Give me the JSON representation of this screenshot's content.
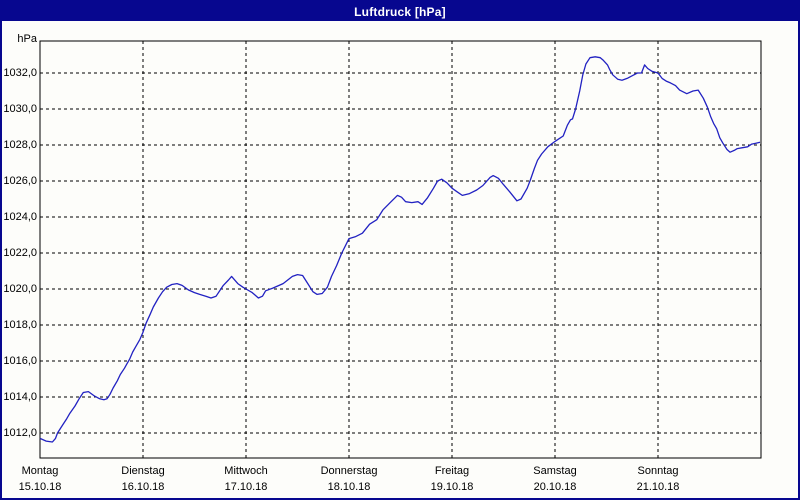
{
  "window": {
    "title": "Luftdruck [hPa]"
  },
  "colors": {
    "frame": "#07078f",
    "title_text": "#ffffff",
    "background": "#fdfdfa",
    "grid": "#000000",
    "line": "#2222c2",
    "text": "#000000"
  },
  "chart_data": {
    "type": "line",
    "title": "Luftdruck [hPa]",
    "ylabel_unit": "hPa",
    "decimal_separator": ",",
    "grid": "dashed horizontal lines every 2 hPa and dashed vertical lines at each day start",
    "legend": "none",
    "ylim_displayed": [
      1012,
      1032
    ],
    "y_ticks": [
      "1032,0",
      "1030,0",
      "1028,0",
      "1026,0",
      "1024,0",
      "1022,0",
      "1020,0",
      "1018,0",
      "1016,0",
      "1014,0",
      "1012,0"
    ],
    "x_axis": {
      "labels": [
        {
          "weekday": "Montag",
          "date": "15.10.18"
        },
        {
          "weekday": "Dienstag",
          "date": "16.10.18"
        },
        {
          "weekday": "Mittwoch",
          "date": "17.10.18"
        },
        {
          "weekday": "Donnerstag",
          "date": "18.10.18"
        },
        {
          "weekday": "Freitag",
          "date": "19.10.18"
        },
        {
          "weekday": "Samstag",
          "date": "20.10.18"
        },
        {
          "weekday": "Sonntag",
          "date": "21.10.18"
        }
      ],
      "x_unit": "days since Montag 15.10.18 00:00"
    },
    "series": [
      {
        "name": "Luftdruck",
        "unit": "hPa",
        "color": "#2222c2",
        "points": [
          [
            0.0,
            1011.7
          ],
          [
            0.06,
            1011.55
          ],
          [
            0.12,
            1011.5
          ],
          [
            0.15,
            1011.7
          ],
          [
            0.17,
            1012.0
          ],
          [
            0.22,
            1012.45
          ],
          [
            0.26,
            1012.8
          ],
          [
            0.29,
            1013.1
          ],
          [
            0.34,
            1013.5
          ],
          [
            0.38,
            1013.9
          ],
          [
            0.42,
            1014.25
          ],
          [
            0.47,
            1014.3
          ],
          [
            0.53,
            1014.05
          ],
          [
            0.58,
            1013.9
          ],
          [
            0.62,
            1013.85
          ],
          [
            0.65,
            1013.9
          ],
          [
            0.68,
            1014.15
          ],
          [
            0.71,
            1014.5
          ],
          [
            0.75,
            1014.9
          ],
          [
            0.78,
            1015.25
          ],
          [
            0.82,
            1015.6
          ],
          [
            0.84,
            1015.8
          ],
          [
            0.87,
            1016.1
          ],
          [
            0.9,
            1016.5
          ],
          [
            0.93,
            1016.8
          ],
          [
            0.97,
            1017.2
          ],
          [
            1.0,
            1017.6
          ],
          [
            1.03,
            1018.1
          ],
          [
            1.07,
            1018.6
          ],
          [
            1.1,
            1019.0
          ],
          [
            1.15,
            1019.5
          ],
          [
            1.19,
            1019.85
          ],
          [
            1.23,
            1020.1
          ],
          [
            1.28,
            1020.25
          ],
          [
            1.33,
            1020.3
          ],
          [
            1.38,
            1020.2
          ],
          [
            1.44,
            1019.95
          ],
          [
            1.5,
            1019.8
          ],
          [
            1.55,
            1019.7
          ],
          [
            1.61,
            1019.6
          ],
          [
            1.66,
            1019.5
          ],
          [
            1.71,
            1019.6
          ],
          [
            1.78,
            1020.2
          ],
          [
            1.83,
            1020.5
          ],
          [
            1.86,
            1020.7
          ],
          [
            1.92,
            1020.3
          ],
          [
            1.97,
            1020.1
          ],
          [
            2.0,
            1020.0
          ],
          [
            2.06,
            1019.8
          ],
          [
            2.12,
            1019.5
          ],
          [
            2.16,
            1019.6
          ],
          [
            2.19,
            1019.9
          ],
          [
            2.26,
            1020.05
          ],
          [
            2.36,
            1020.3
          ],
          [
            2.45,
            1020.7
          ],
          [
            2.5,
            1020.8
          ],
          [
            2.55,
            1020.75
          ],
          [
            2.6,
            1020.3
          ],
          [
            2.65,
            1019.85
          ],
          [
            2.69,
            1019.7
          ],
          [
            2.74,
            1019.75
          ],
          [
            2.79,
            1020.1
          ],
          [
            2.83,
            1020.7
          ],
          [
            2.88,
            1021.3
          ],
          [
            2.93,
            1022.0
          ],
          [
            3.0,
            1022.8
          ],
          [
            3.06,
            1022.9
          ],
          [
            3.13,
            1023.1
          ],
          [
            3.2,
            1023.6
          ],
          [
            3.27,
            1023.85
          ],
          [
            3.33,
            1024.4
          ],
          [
            3.4,
            1024.8
          ],
          [
            3.47,
            1025.2
          ],
          [
            3.51,
            1025.1
          ],
          [
            3.55,
            1024.85
          ],
          [
            3.61,
            1024.8
          ],
          [
            3.67,
            1024.85
          ],
          [
            3.71,
            1024.7
          ],
          [
            3.76,
            1025.05
          ],
          [
            3.82,
            1025.6
          ],
          [
            3.86,
            1026.0
          ],
          [
            3.9,
            1026.1
          ],
          [
            3.95,
            1025.9
          ],
          [
            4.0,
            1025.6
          ],
          [
            4.05,
            1025.4
          ],
          [
            4.1,
            1025.2
          ],
          [
            4.17,
            1025.3
          ],
          [
            4.24,
            1025.5
          ],
          [
            4.3,
            1025.75
          ],
          [
            4.37,
            1026.2
          ],
          [
            4.4,
            1026.3
          ],
          [
            4.45,
            1026.15
          ],
          [
            4.5,
            1025.8
          ],
          [
            4.56,
            1025.4
          ],
          [
            4.63,
            1024.9
          ],
          [
            4.67,
            1025.0
          ],
          [
            4.73,
            1025.6
          ],
          [
            4.76,
            1026.05
          ],
          [
            4.8,
            1026.7
          ],
          [
            4.83,
            1027.15
          ],
          [
            4.87,
            1027.5
          ],
          [
            4.93,
            1027.9
          ],
          [
            5.0,
            1028.2
          ],
          [
            5.04,
            1028.35
          ],
          [
            5.08,
            1028.5
          ],
          [
            5.12,
            1029.1
          ],
          [
            5.15,
            1029.4
          ],
          [
            5.17,
            1029.45
          ],
          [
            5.2,
            1030.0
          ],
          [
            5.24,
            1031.0
          ],
          [
            5.27,
            1031.9
          ],
          [
            5.3,
            1032.5
          ],
          [
            5.34,
            1032.85
          ],
          [
            5.39,
            1032.9
          ],
          [
            5.44,
            1032.85
          ],
          [
            5.47,
            1032.7
          ],
          [
            5.51,
            1032.45
          ],
          [
            5.53,
            1032.2
          ],
          [
            5.56,
            1031.9
          ],
          [
            5.61,
            1031.65
          ],
          [
            5.65,
            1031.6
          ],
          [
            5.7,
            1031.7
          ],
          [
            5.75,
            1031.85
          ],
          [
            5.8,
            1032.0
          ],
          [
            5.84,
            1032.0
          ],
          [
            5.87,
            1032.45
          ],
          [
            5.9,
            1032.25
          ],
          [
            5.94,
            1032.1
          ],
          [
            6.0,
            1032.0
          ],
          [
            6.04,
            1031.7
          ],
          [
            6.08,
            1031.55
          ],
          [
            6.12,
            1031.45
          ],
          [
            6.17,
            1031.3
          ],
          [
            6.21,
            1031.05
          ],
          [
            6.28,
            1030.85
          ],
          [
            6.34,
            1031.0
          ],
          [
            6.39,
            1031.05
          ],
          [
            6.44,
            1030.6
          ],
          [
            6.48,
            1030.1
          ],
          [
            6.51,
            1029.6
          ],
          [
            6.54,
            1029.2
          ],
          [
            6.57,
            1028.9
          ],
          [
            6.6,
            1028.4
          ],
          [
            6.63,
            1028.1
          ],
          [
            6.67,
            1027.75
          ],
          [
            6.7,
            1027.6
          ],
          [
            6.74,
            1027.7
          ],
          [
            6.77,
            1027.8
          ],
          [
            6.82,
            1027.85
          ],
          [
            6.87,
            1027.9
          ],
          [
            6.91,
            1028.05
          ],
          [
            6.95,
            1028.1
          ],
          [
            6.99,
            1028.15
          ]
        ]
      }
    ]
  }
}
